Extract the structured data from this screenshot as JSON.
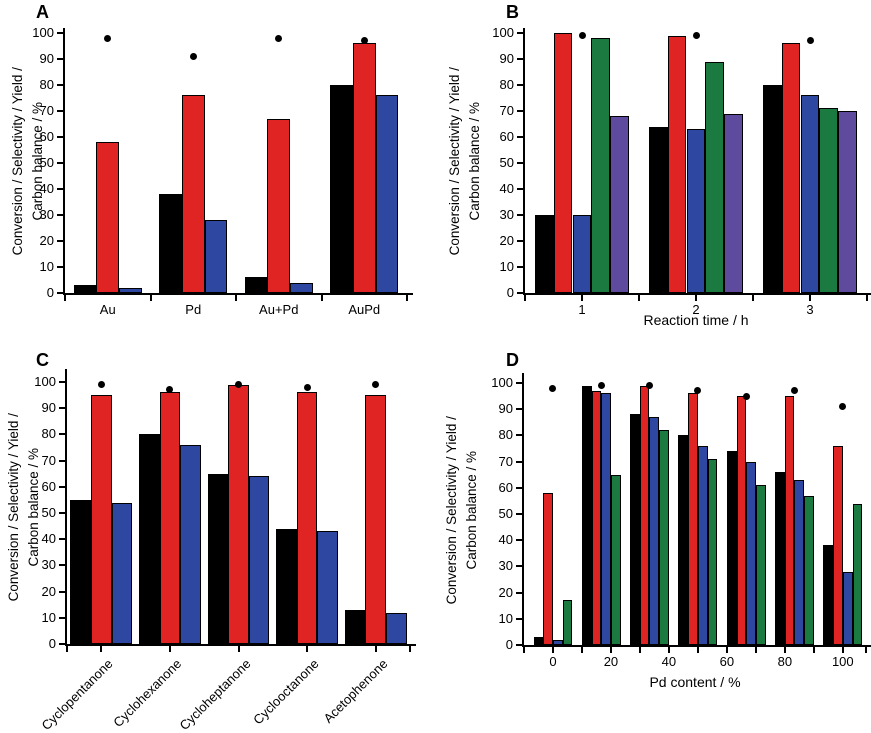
{
  "figure": {
    "ylabel_line1": "Conversion / Selectivity / Yield /",
    "ylabel_line2": "Carbon balance / %"
  },
  "colors": {
    "black": "#000000",
    "red": "#e02423",
    "blue": "#2e48a1",
    "green": "#1a7a40",
    "purple": "#5f4b9e"
  },
  "chart_data": [
    {
      "panel": "A",
      "type": "bar",
      "categories": [
        "Au",
        "Pd",
        "Au+Pd",
        "AuPd"
      ],
      "series": [
        {
          "name": "black",
          "color": "#000000",
          "values": [
            3,
            38,
            6,
            80
          ]
        },
        {
          "name": "red",
          "color": "#e02423",
          "values": [
            58,
            76,
            67,
            96
          ]
        },
        {
          "name": "blue",
          "color": "#2e48a1",
          "values": [
            2,
            28,
            4,
            76
          ]
        }
      ],
      "scatter": {
        "name": "black-dot",
        "color": "#000000",
        "values": [
          98,
          91,
          98,
          97
        ]
      },
      "xlabel": "",
      "ylabel": "Conversion / Selectivity / Yield / Carbon balance / %",
      "ylim": [
        0,
        100
      ],
      "yticks": [
        0,
        10,
        20,
        30,
        40,
        50,
        60,
        70,
        80,
        90,
        100
      ],
      "legend": "none",
      "grid": false
    },
    {
      "panel": "B",
      "type": "bar",
      "categories": [
        "1",
        "2",
        "3"
      ],
      "series": [
        {
          "name": "black",
          "color": "#000000",
          "values": [
            30,
            64,
            80
          ]
        },
        {
          "name": "red",
          "color": "#e02423",
          "values": [
            100,
            99,
            96
          ]
        },
        {
          "name": "blue",
          "color": "#2e48a1",
          "values": [
            30,
            63,
            76
          ]
        },
        {
          "name": "green",
          "color": "#1a7a40",
          "values": [
            98,
            89,
            71
          ]
        },
        {
          "name": "purple",
          "color": "#5f4b9e",
          "values": [
            68,
            69,
            70
          ]
        }
      ],
      "scatter": {
        "name": "black-dot",
        "color": "#000000",
        "values": [
          99,
          99,
          97
        ]
      },
      "xlabel": "Reaction time / h",
      "ylabel": "Conversion / Selectivity / Yield / Carbon balance / %",
      "ylim": [
        0,
        100
      ],
      "yticks": [
        0,
        10,
        20,
        30,
        40,
        50,
        60,
        70,
        80,
        90,
        100
      ],
      "legend": "none",
      "grid": false
    },
    {
      "panel": "C",
      "type": "bar",
      "categories": [
        "Cyclopentanone",
        "Cyclohexanone",
        "Cycloheptanone",
        "Cyclooctanone",
        "Acetophenone"
      ],
      "series": [
        {
          "name": "black",
          "color": "#000000",
          "values": [
            55,
            80,
            65,
            44,
            13
          ]
        },
        {
          "name": "red",
          "color": "#e02423",
          "values": [
            95,
            96,
            99,
            96,
            95
          ]
        },
        {
          "name": "blue",
          "color": "#2e48a1",
          "values": [
            54,
            76,
            64,
            43,
            12
          ]
        }
      ],
      "scatter": {
        "name": "black-dot",
        "color": "#000000",
        "values": [
          99,
          97,
          99,
          98,
          99
        ]
      },
      "xlabel": "",
      "ylabel": "Conversion / Selectivity / Yield / Carbon balance / %",
      "ylim": [
        0,
        100
      ],
      "yticks": [
        0,
        10,
        20,
        30,
        40,
        50,
        60,
        70,
        80,
        90,
        100
      ],
      "rotated_xticklabels": 45,
      "legend": "none",
      "grid": false
    },
    {
      "panel": "D",
      "type": "bar",
      "x_positions": [
        0,
        16.7,
        33.3,
        50,
        66.7,
        83.3,
        100
      ],
      "xlim": [
        -10,
        108
      ],
      "xticks": [
        0,
        20,
        40,
        60,
        80,
        100
      ],
      "xticks_minor": [
        10,
        30,
        50,
        70,
        90
      ],
      "series": [
        {
          "name": "black",
          "color": "#000000",
          "values": [
            3,
            99,
            88,
            80,
            74,
            66,
            38
          ]
        },
        {
          "name": "red",
          "color": "#e02423",
          "values": [
            58,
            97,
            99,
            96,
            95,
            95,
            76
          ]
        },
        {
          "name": "blue",
          "color": "#2e48a1",
          "values": [
            2,
            96,
            87,
            76,
            70,
            63,
            28
          ]
        },
        {
          "name": "green",
          "color": "#1a7a40",
          "values": [
            17,
            65,
            82,
            71,
            61,
            57,
            54
          ]
        }
      ],
      "scatter": {
        "name": "black-dot",
        "color": "#000000",
        "values": [
          98,
          99,
          99,
          97,
          95,
          97,
          91
        ]
      },
      "xlabel": "Pd content / %",
      "ylabel": "Conversion / Selectivity / Yield / Carbon balance / %",
      "ylim": [
        0,
        100
      ],
      "yticks": [
        0,
        10,
        20,
        30,
        40,
        50,
        60,
        70,
        80,
        90,
        100
      ],
      "legend": "none",
      "grid": false
    }
  ]
}
